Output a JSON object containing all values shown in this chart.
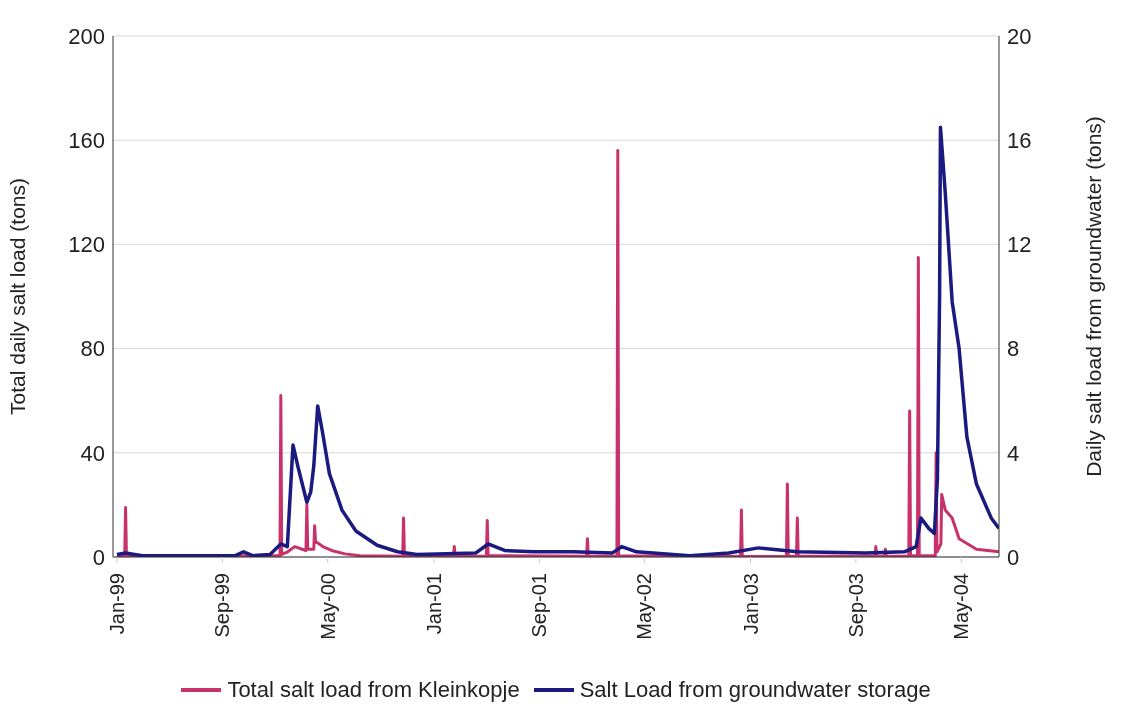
{
  "chart_data": {
    "type": "line",
    "ylabel": "Total daily salt load (tons)",
    "y2label": "Daily salt load from groundwater (tons)",
    "xlim": [
      "1998-12-23",
      "2004-07-27"
    ],
    "xticks": [
      {
        "value": "1999-01-01",
        "label": "Jan-99"
      },
      {
        "value": "1999-09-01",
        "label": "Sep-99"
      },
      {
        "value": "2000-05-01",
        "label": "May-00"
      },
      {
        "value": "2001-01-01",
        "label": "Jan-01"
      },
      {
        "value": "2001-09-01",
        "label": "Sep-01"
      },
      {
        "value": "2002-05-01",
        "label": "May-02"
      },
      {
        "value": "2003-01-01",
        "label": "Jan-03"
      },
      {
        "value": "2003-09-01",
        "label": "Sep-03"
      },
      {
        "value": "2004-05-01",
        "label": "May-04"
      }
    ],
    "ylim": [
      0,
      200
    ],
    "yticks": [
      0,
      40,
      80,
      120,
      160,
      200
    ],
    "y2lim": [
      0,
      20
    ],
    "y2ticks": [
      0,
      4,
      8,
      12,
      16,
      20
    ],
    "grid": "y",
    "legend": "bottom",
    "marker": "none",
    "line_style": "solid",
    "series": [
      {
        "name": "Total salt load from Kleinkopje",
        "color": "#c8326a",
        "x": [
          "1999-01-01",
          "1999-01-19",
          "1999-01-21",
          "1999-01-23",
          "2000-01-12",
          "2000-01-14",
          "2000-01-16",
          "2000-01-30",
          "2000-02-15",
          "2000-03-12",
          "2000-03-14",
          "2000-03-16",
          "2000-03-30",
          "2000-04-01",
          "2000-04-03",
          "2000-04-20",
          "2000-05-10",
          "2000-06-10",
          "2000-07-15",
          "2000-10-21",
          "2000-10-23",
          "2000-10-25",
          "2001-02-15",
          "2001-02-17",
          "2001-02-19",
          "2001-05-02",
          "2001-05-04",
          "2001-05-06",
          "2001-12-19",
          "2001-12-21",
          "2001-12-23",
          "2002-02-27",
          "2002-03-01",
          "2002-03-03",
          "2002-12-09",
          "2002-12-11",
          "2002-12-13",
          "2003-03-25",
          "2003-03-27",
          "2003-03-29",
          "2003-04-17",
          "2003-04-19",
          "2003-04-21",
          "2003-10-15",
          "2003-10-17",
          "2003-10-19",
          "2003-11-06",
          "2003-11-08",
          "2003-11-10",
          "2004-01-01",
          "2004-01-03",
          "2004-01-05",
          "2004-01-21",
          "2004-01-23",
          "2004-01-25",
          "2004-03-02",
          "2004-03-04",
          "2004-03-06",
          "2004-03-15",
          "2004-03-17",
          "2004-03-25",
          "2004-04-10",
          "2004-04-26",
          "2004-06-05",
          "2004-07-27"
        ],
        "values": [
          0.3,
          0.3,
          19,
          0.3,
          0.5,
          62,
          1,
          2,
          4,
          2.5,
          20,
          3,
          3,
          12,
          6,
          4,
          2.5,
          1.2,
          0.5,
          0.3,
          15,
          0.3,
          0.3,
          4,
          0.3,
          0.3,
          14,
          0.5,
          0.3,
          7,
          0.3,
          0.3,
          156,
          0.5,
          0.2,
          18,
          0.2,
          0.2,
          28,
          0.3,
          0.3,
          15,
          0.3,
          0.3,
          4,
          0.3,
          0.3,
          3,
          0.3,
          0.3,
          56,
          0.5,
          0.5,
          115,
          0.5,
          0.5,
          40,
          2,
          5,
          24,
          18,
          15,
          7,
          3,
          2
        ]
      },
      {
        "name": "Salt Load from groundwater storage",
        "color": "#1a1a80",
        "axis": "y2",
        "x": [
          "1999-01-01",
          "1999-01-21",
          "1999-03-01",
          "1999-10-01",
          "1999-10-20",
          "1999-11-10",
          "1999-12-20",
          "2000-01-14",
          "2000-01-29",
          "2000-02-11",
          "2000-02-22",
          "2000-03-14",
          "2000-03-23",
          "2000-03-30",
          "2000-04-08",
          "2000-04-19",
          "2000-05-05",
          "2000-06-03",
          "2000-07-05",
          "2000-08-23",
          "2000-10-09",
          "2000-11-23",
          "2001-04-07",
          "2001-05-06",
          "2001-06-13",
          "2001-08-20",
          "2001-11-18",
          "2002-02-16",
          "2002-03-10",
          "2002-04-13",
          "2002-08-14",
          "2002-11-12",
          "2003-01-19",
          "2003-04-19",
          "2003-09-23",
          "2003-12-22",
          "2004-01-18",
          "2004-01-29",
          "2004-02-16",
          "2004-02-29",
          "2004-03-07",
          "2004-03-12",
          "2004-03-14",
          "2004-03-25",
          "2004-04-10",
          "2004-04-26",
          "2004-05-14",
          "2004-06-05",
          "2004-07-09",
          "2004-07-27"
        ],
        "values": [
          0.1,
          0.15,
          0.05,
          0.05,
          0.2,
          0.05,
          0.1,
          0.5,
          0.4,
          4.3,
          3.5,
          2.1,
          2.5,
          3.5,
          5.8,
          4.8,
          3.2,
          1.8,
          1.0,
          0.45,
          0.2,
          0.1,
          0.15,
          0.5,
          0.25,
          0.2,
          0.2,
          0.15,
          0.4,
          0.2,
          0.05,
          0.15,
          0.35,
          0.2,
          0.15,
          0.2,
          0.4,
          1.5,
          1.1,
          0.9,
          3,
          10,
          16.5,
          14,
          9.8,
          8.0,
          4.6,
          2.8,
          1.5,
          1.1
        ]
      }
    ]
  }
}
